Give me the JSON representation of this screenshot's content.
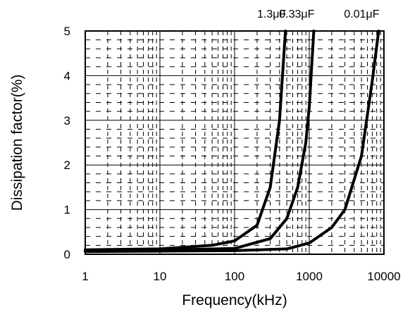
{
  "chart_data": {
    "type": "line",
    "title": "",
    "xlabel": "Frequency(kHz)",
    "ylabel": "Dissipation factor(%)",
    "x_scale": "log",
    "xlim": [
      1,
      10000
    ],
    "ylim": [
      0,
      5
    ],
    "x_ticks": [
      1,
      10,
      100,
      1000,
      10000
    ],
    "x_tick_labels": [
      "1",
      "10",
      "100",
      "1000",
      "10000"
    ],
    "y_ticks": [
      0,
      1,
      2,
      3,
      4,
      5
    ],
    "y_tick_labels": [
      "0",
      "1",
      "2",
      "3",
      "4",
      "5"
    ],
    "grid": true,
    "legend": "none",
    "series": [
      {
        "name": "1.3μF",
        "color": "#000000",
        "points": [
          [
            1,
            0.1
          ],
          [
            10,
            0.12
          ],
          [
            50,
            0.2
          ],
          [
            100,
            0.3
          ],
          [
            200,
            0.65
          ],
          [
            300,
            1.5
          ],
          [
            400,
            3.0
          ],
          [
            480,
            5.0
          ]
        ]
      },
      {
        "name": "0.33μF",
        "color": "#000000",
        "points": [
          [
            1,
            0.08
          ],
          [
            10,
            0.09
          ],
          [
            100,
            0.13
          ],
          [
            300,
            0.35
          ],
          [
            500,
            0.8
          ],
          [
            700,
            1.5
          ],
          [
            900,
            2.5
          ],
          [
            1000,
            3.3
          ],
          [
            1150,
            5.0
          ]
        ]
      },
      {
        "name": "0.01μF",
        "color": "#000000",
        "points": [
          [
            1,
            0.06
          ],
          [
            10,
            0.07
          ],
          [
            100,
            0.08
          ],
          [
            500,
            0.12
          ],
          [
            1000,
            0.25
          ],
          [
            2000,
            0.6
          ],
          [
            3000,
            1.0
          ],
          [
            5000,
            2.2
          ],
          [
            7000,
            3.9
          ],
          [
            8500,
            5.0
          ]
        ]
      }
    ]
  }
}
